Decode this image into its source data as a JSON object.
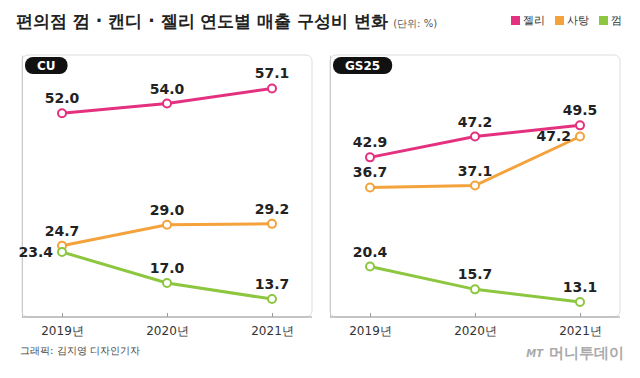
{
  "title": "편의점 껌 · 캔디 · 젤리 연도별 매출 구성비 변화",
  "subtitle": "(단위: %)",
  "credit": "그래픽: 김지영 디자인기자",
  "logo": [
    "MT",
    "머니투데이"
  ],
  "chart_data": [
    {
      "type": "line",
      "title": "CU",
      "categories": [
        "2019년",
        "2020년",
        "2021년"
      ],
      "ylim": [
        10,
        64
      ],
      "tick_labels": "x",
      "data_labels": true,
      "legend": "top-right",
      "series": [
        {
          "name": "젤리",
          "color": "#e4317f",
          "values": [
            52.0,
            54.0,
            57.1
          ]
        },
        {
          "name": "사탕",
          "color": "#f4a23c",
          "values": [
            24.7,
            29.0,
            29.2
          ]
        },
        {
          "name": "껌",
          "color": "#8dc63f",
          "values": [
            23.4,
            17.0,
            13.7
          ]
        }
      ]
    },
    {
      "type": "line",
      "title": "GS25",
      "categories": [
        "2019년",
        "2020년",
        "2021년"
      ],
      "ylim": [
        10,
        64
      ],
      "tick_labels": "x",
      "data_labels": true,
      "series": [
        {
          "color": "#e4317f",
          "values": [
            42.9,
            47.2,
            49.5
          ]
        },
        {
          "color": "#f4a23c",
          "values": [
            36.7,
            37.1,
            47.2
          ]
        },
        {
          "color": "#8dc63f",
          "values": [
            20.4,
            15.7,
            13.1
          ]
        }
      ]
    }
  ]
}
